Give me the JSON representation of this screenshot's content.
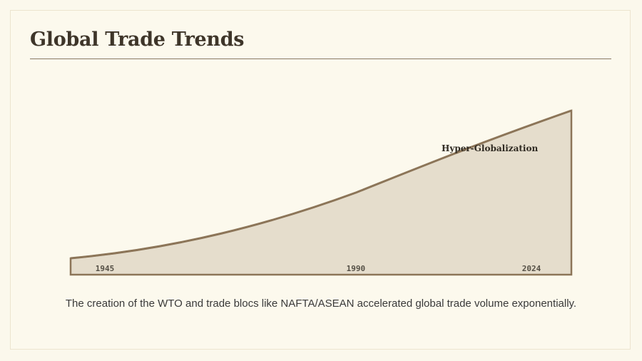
{
  "slide": {
    "title": "Global Trade Trends",
    "caption": "The creation of the WTO and trade blocs like NAFTA/ASEAN accelerated global trade volume exponentially."
  },
  "chart_data": {
    "type": "area",
    "title": "",
    "xlabel": "",
    "ylabel": "",
    "x": [
      1945,
      1990,
      2024
    ],
    "tick_labels": [
      "1945",
      "1990",
      "2024"
    ],
    "series": [
      {
        "values": [
          10,
          50,
          100
        ]
      }
    ],
    "annotation": {
      "text": "Hyper-Globalization",
      "x": 2010
    },
    "colors": {
      "fill": "#e5ddcc",
      "stroke": "#8c7558",
      "text": "#555046"
    }
  }
}
